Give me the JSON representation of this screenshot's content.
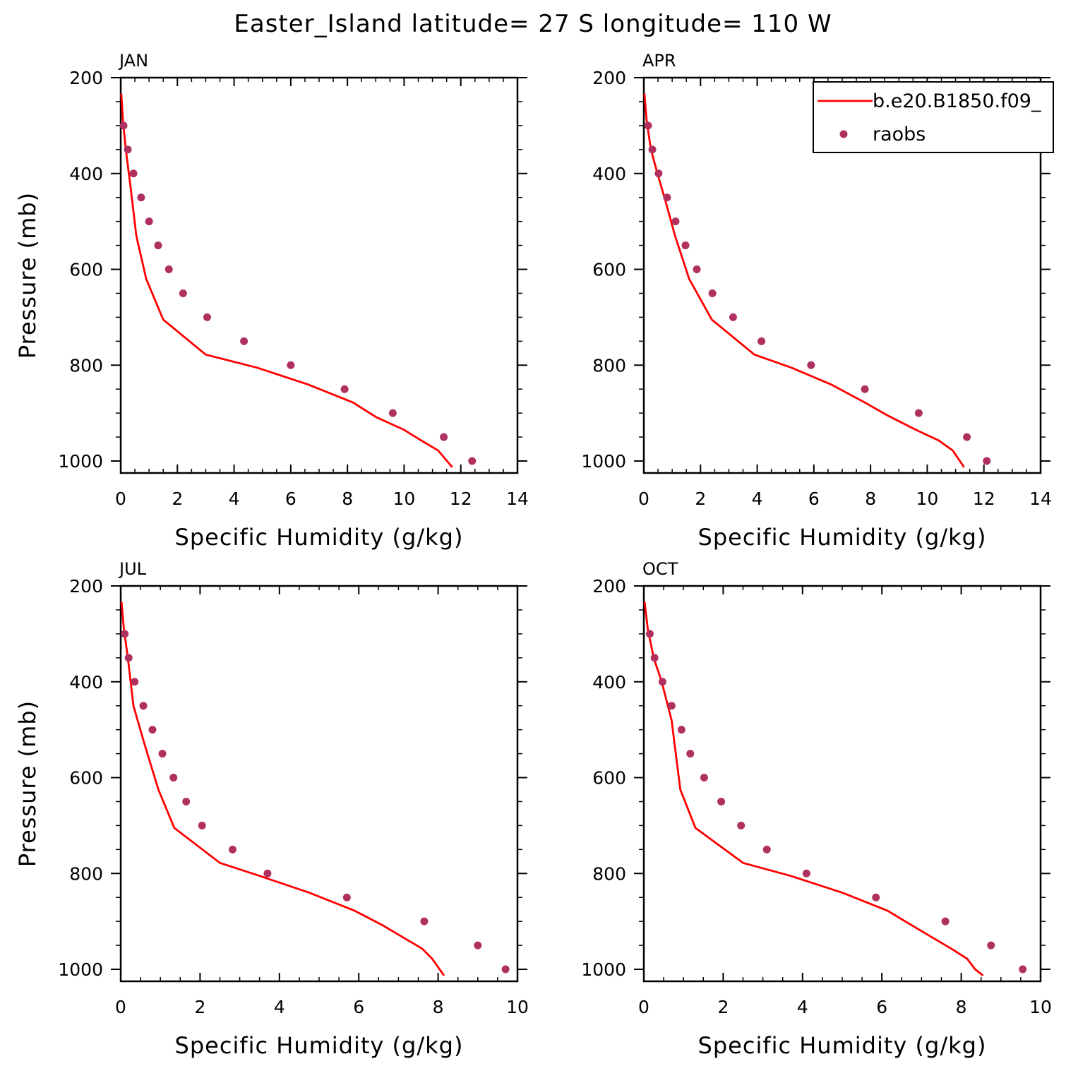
{
  "figure_title": "Easter_Island  latitude= 27 S longitude= 110 W",
  "legend": {
    "model_label": "b.e20.B1850.f09_",
    "obs_label": "raobs"
  },
  "colors": {
    "model_line": "#ff0000",
    "obs_marker": "#b03060",
    "axes": "#000000"
  },
  "chart_data": [
    {
      "type": "line",
      "panel": "JAN",
      "xlabel": "Specific Humidity (g/kg)",
      "ylabel": "Pressure (mb)",
      "xlim": [
        0,
        14
      ],
      "ylim": [
        200,
        1025
      ],
      "y_inverted": true,
      "xticks": [
        0,
        2,
        4,
        6,
        8,
        10,
        12,
        14
      ],
      "yticks": [
        200,
        400,
        600,
        800,
        1000
      ],
      "series": [
        {
          "name": "b.e20.B1850.f09_",
          "style": "line",
          "x": [
            0.02,
            0.08,
            0.18,
            0.35,
            0.55,
            0.9,
            1.5,
            3.0,
            4.8,
            6.6,
            8.2,
            9.0,
            10.0,
            10.6,
            11.2,
            11.7
          ],
          "y": [
            233,
            290,
            350,
            430,
            530,
            620,
            705,
            778,
            805,
            840,
            878,
            908,
            935,
            957,
            978,
            1013
          ]
        },
        {
          "name": "raobs",
          "style": "markers",
          "x": [
            0.1,
            0.25,
            0.45,
            0.72,
            1.0,
            1.32,
            1.7,
            2.2,
            3.05,
            4.35,
            6.0,
            7.9,
            9.6,
            11.4,
            12.4
          ],
          "y": [
            300,
            350,
            400,
            450,
            500,
            550,
            600,
            650,
            700,
            750,
            800,
            850,
            900,
            950,
            1000
          ]
        }
      ]
    },
    {
      "type": "line",
      "panel": "APR",
      "xlabel": "Specific Humidity (g/kg)",
      "ylabel": "",
      "xlim": [
        0,
        14
      ],
      "ylim": [
        200,
        1025
      ],
      "y_inverted": true,
      "xticks": [
        0,
        2,
        4,
        6,
        8,
        10,
        12,
        14
      ],
      "yticks": [
        200,
        400,
        600,
        800,
        1000
      ],
      "legend_position": "top-right",
      "series": [
        {
          "name": "b.e20.B1850.f09_",
          "style": "line",
          "x": [
            0.02,
            0.1,
            0.25,
            0.48,
            0.8,
            1.1,
            1.6,
            2.4,
            3.9,
            5.2,
            6.6,
            7.8,
            8.6,
            9.6,
            10.4,
            10.9,
            11.3
          ],
          "y": [
            233,
            290,
            350,
            400,
            465,
            530,
            620,
            705,
            778,
            805,
            840,
            878,
            905,
            935,
            957,
            978,
            1013
          ]
        },
        {
          "name": "raobs",
          "style": "markers",
          "x": [
            0.15,
            0.3,
            0.52,
            0.82,
            1.12,
            1.47,
            1.87,
            2.42,
            3.15,
            4.15,
            5.9,
            7.8,
            9.7,
            11.4,
            12.1
          ],
          "y": [
            300,
            350,
            400,
            450,
            500,
            550,
            600,
            650,
            700,
            750,
            800,
            850,
            900,
            950,
            1000
          ]
        }
      ]
    },
    {
      "type": "line",
      "panel": "JUL",
      "xlabel": "Specific Humidity (g/kg)",
      "ylabel": "Pressure (mb)",
      "xlim": [
        0,
        10
      ],
      "ylim": [
        200,
        1025
      ],
      "y_inverted": true,
      "xticks": [
        0,
        2,
        4,
        6,
        8,
        10
      ],
      "yticks": [
        200,
        400,
        600,
        800,
        1000
      ],
      "series": [
        {
          "name": "b.e20.B1850.f09_",
          "style": "line",
          "x": [
            0.02,
            0.08,
            0.18,
            0.32,
            0.6,
            0.95,
            1.35,
            2.5,
            3.5,
            4.75,
            5.9,
            6.6,
            7.15,
            7.6,
            7.85,
            8.15
          ],
          "y": [
            233,
            290,
            350,
            450,
            530,
            625,
            705,
            778,
            805,
            840,
            878,
            908,
            935,
            957,
            978,
            1013
          ]
        },
        {
          "name": "raobs",
          "style": "markers",
          "x": [
            0.1,
            0.2,
            0.35,
            0.57,
            0.8,
            1.05,
            1.33,
            1.65,
            2.05,
            2.82,
            3.7,
            5.7,
            7.65,
            9.0,
            9.7
          ],
          "y": [
            300,
            350,
            400,
            450,
            500,
            550,
            600,
            650,
            700,
            750,
            800,
            850,
            900,
            950,
            1000
          ]
        }
      ]
    },
    {
      "type": "line",
      "panel": "OCT",
      "xlabel": "Specific Humidity (g/kg)",
      "ylabel": "",
      "xlim": [
        0,
        10
      ],
      "ylim": [
        200,
        1025
      ],
      "y_inverted": true,
      "xticks": [
        0,
        2,
        4,
        6,
        8,
        10
      ],
      "yticks": [
        200,
        400,
        600,
        800,
        1000
      ],
      "series": [
        {
          "name": "b.e20.B1850.f09_",
          "style": "line",
          "x": [
            0.02,
            0.1,
            0.25,
            0.45,
            0.7,
            0.92,
            1.3,
            2.5,
            3.7,
            5.0,
            6.15,
            6.75,
            7.3,
            7.75,
            8.15,
            8.35,
            8.55
          ],
          "y": [
            233,
            290,
            350,
            400,
            480,
            625,
            705,
            778,
            805,
            840,
            878,
            908,
            935,
            957,
            978,
            1000,
            1013
          ]
        },
        {
          "name": "raobs",
          "style": "markers",
          "x": [
            0.15,
            0.27,
            0.47,
            0.7,
            0.95,
            1.17,
            1.52,
            1.95,
            2.45,
            3.1,
            4.1,
            5.85,
            7.6,
            8.75,
            9.55
          ],
          "y": [
            300,
            350,
            400,
            450,
            500,
            550,
            600,
            650,
            700,
            750,
            800,
            850,
            900,
            950,
            1000
          ]
        }
      ]
    }
  ]
}
